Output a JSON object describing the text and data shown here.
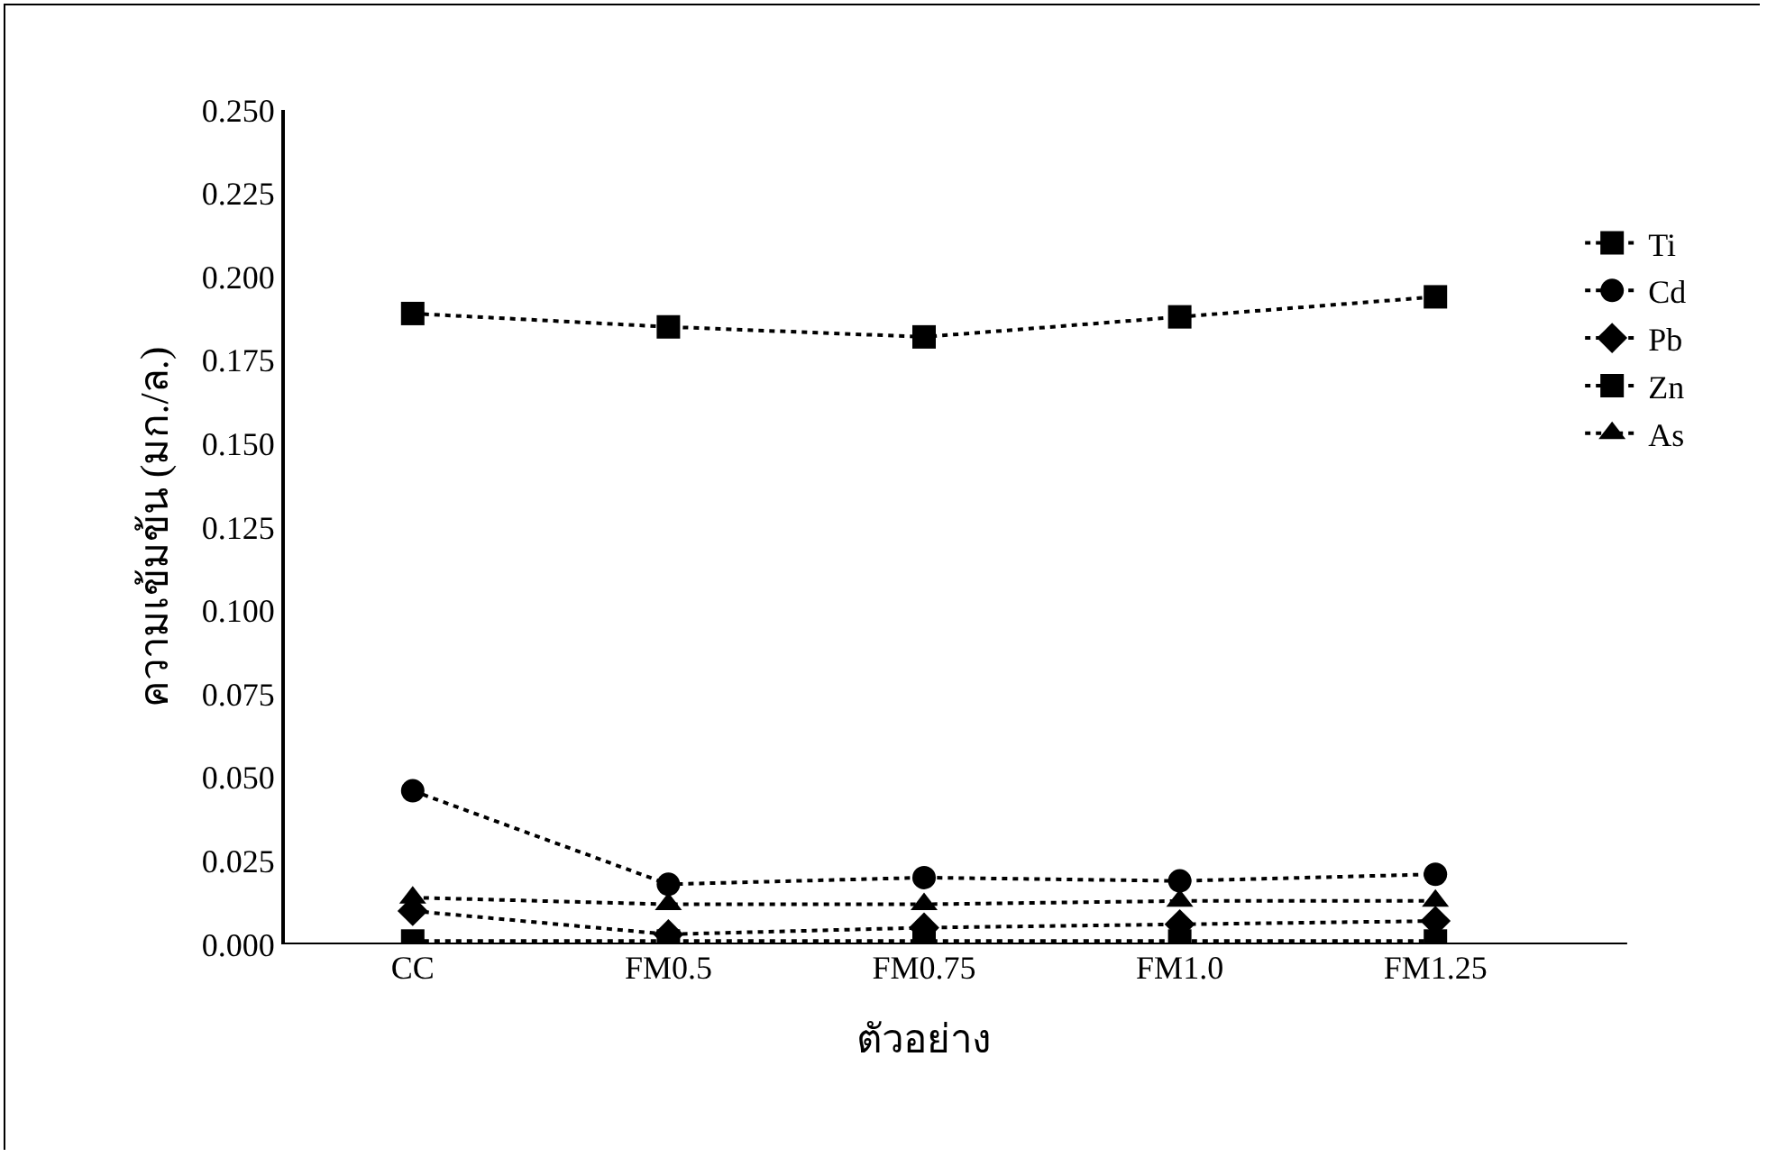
{
  "chart_data": {
    "type": "line",
    "xlabel": "ตัวอย่าง",
    "ylabel": "ความเข้มข้น (มก./ล.)",
    "categories": [
      "CC",
      "FM0.5",
      "FM0.75",
      "FM1.0",
      "FM1.25"
    ],
    "series": [
      {
        "name": "Ti",
        "color": "#000000",
        "marker": "square",
        "values": [
          0.189,
          0.185,
          0.182,
          0.188,
          0.194
        ]
      },
      {
        "name": "Cd",
        "color": "#000000",
        "marker": "circle",
        "values": [
          0.046,
          0.018,
          0.02,
          0.019,
          0.021
        ]
      },
      {
        "name": "Pb",
        "color": "#000000",
        "marker": "diamond",
        "values": [
          0.01,
          0.003,
          0.005,
          0.006,
          0.007
        ]
      },
      {
        "name": "Zn",
        "color": "#000000",
        "marker": "square",
        "values": [
          0.001,
          0.001,
          0.001,
          0.001,
          0.001
        ]
      },
      {
        "name": "As",
        "color": "#000000",
        "marker": "triangle",
        "values": [
          0.014,
          0.012,
          0.012,
          0.013,
          0.013
        ]
      }
    ],
    "ylim": [
      0,
      0.25
    ],
    "yticks": [
      {
        "value": 0,
        "label": "0.000"
      },
      {
        "value": 0.025,
        "label": "0.025"
      },
      {
        "value": 0.05,
        "label": "0.050"
      },
      {
        "value": 0.075,
        "label": "0.075"
      },
      {
        "value": 0.1,
        "label": "0.100"
      },
      {
        "value": 0.125,
        "label": "0.125"
      },
      {
        "value": 0.15,
        "label": "0.150"
      },
      {
        "value": 0.175,
        "label": "0.175"
      },
      {
        "value": 0.2,
        "label": "0.200"
      },
      {
        "value": 0.225,
        "label": "0.225"
      },
      {
        "value": 0.25,
        "label": "0.250"
      }
    ],
    "grid": false,
    "legend": "right",
    "line_style": "dotted"
  }
}
